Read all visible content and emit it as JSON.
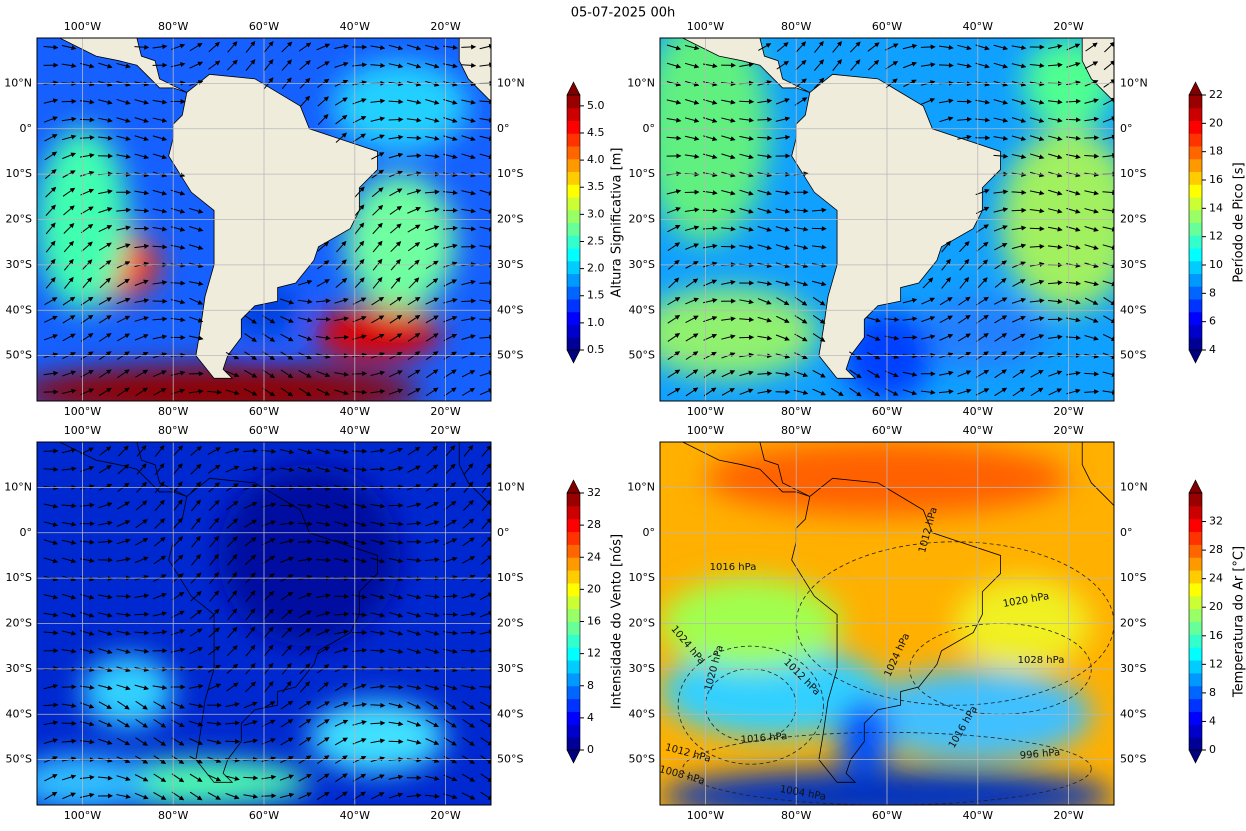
{
  "title": "05-07-2025 00h",
  "map": {
    "xlim": [
      -110,
      -10
    ],
    "ylim": [
      -60,
      20
    ],
    "xticks": [
      {
        "value": -100,
        "label": "100°W"
      },
      {
        "value": -80,
        "label": "80°W"
      },
      {
        "value": -60,
        "label": "60°W"
      },
      {
        "value": -40,
        "label": "40°W"
      },
      {
        "value": -20,
        "label": "20°W"
      }
    ],
    "yticks": [
      {
        "value": 10,
        "label": "10°N"
      },
      {
        "value": 0,
        "label": "0°"
      },
      {
        "value": -10,
        "label": "10°S"
      },
      {
        "value": -20,
        "label": "20°S"
      },
      {
        "value": -30,
        "label": "30°S"
      },
      {
        "value": -40,
        "label": "40°S"
      },
      {
        "value": -50,
        "label": "50°S"
      }
    ]
  },
  "panels": [
    {
      "colorbar": {
        "label": "Altura Significativa [m]",
        "colormap": "jet",
        "lim": [
          0.5,
          5.2
        ],
        "ticks": [
          0.5,
          {
            "value": 1,
            "label": "1.0"
          },
          1.5,
          {
            "value": 2,
            "label": "2.0"
          },
          2.5,
          {
            "value": 3,
            "label": "3.0"
          },
          3.5,
          {
            "value": 4,
            "label": "4.0"
          },
          4.5,
          {
            "value": 5,
            "label": "5.0"
          }
        ]
      }
    },
    {
      "colorbar": {
        "label": "Período de Pico [s]",
        "colormap": "jet",
        "lim": [
          4,
          22
        ],
        "ticks": [
          4,
          6,
          8,
          10,
          12,
          14,
          16,
          18,
          20,
          22
        ]
      }
    },
    {
      "colorbar": {
        "label": "Intensidade do Vento [nós]",
        "colormap": "jet",
        "lim": [
          0,
          32
        ],
        "ticks": [
          0,
          4,
          8,
          12,
          16,
          20,
          24,
          28,
          32
        ]
      }
    },
    {
      "colorbar": {
        "label": "Temperatura do Ar [°C]",
        "colormap": "jet",
        "lim": [
          0,
          36
        ],
        "ticks": [
          0,
          4,
          8,
          12,
          16,
          20,
          24,
          28,
          32
        ]
      },
      "contour_labels": [
        "1016 hPa",
        "1020 hPa",
        "1028 hPa",
        "1024 hPa",
        "1020 hPa",
        "1012 hPa",
        "1024 hPa",
        "1016 hPa",
        "1016 hPa",
        "1012 hPa",
        "1008 hPa",
        "1004 hPa",
        "1012 hPa",
        "996 hPa"
      ]
    }
  ]
}
